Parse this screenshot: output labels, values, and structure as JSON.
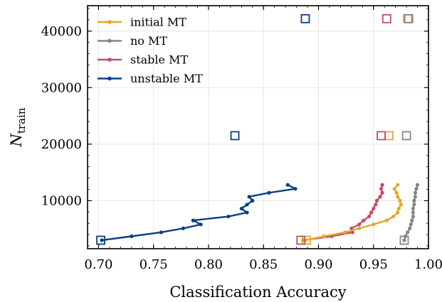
{
  "chart_data": {
    "type": "line",
    "xlabel": "Classification Accuracy",
    "ylabel": "N",
    "ylabel_sub": "train",
    "xlim": [
      0.69,
      1.0
    ],
    "ylim": [
      1500,
      44500
    ],
    "x_ticks": [
      0.7,
      0.75,
      0.8,
      0.85,
      0.9,
      0.95,
      1.0
    ],
    "x_tick_labels": [
      "0.70",
      "0.75",
      "0.80",
      "0.85",
      "0.90",
      "0.95",
      "1.00"
    ],
    "y_ticks": [
      10000,
      20000,
      30000,
      40000
    ],
    "y_tick_labels": [
      "10000",
      "20000",
      "30000",
      "40000"
    ],
    "grid": true,
    "legend_position": "top-left",
    "series": [
      {
        "name": "initial MT",
        "color": "#e5a82a",
        "points": [
          [
            0.888,
            3000
          ],
          [
            0.905,
            3700
          ],
          [
            0.924,
            4400
          ],
          [
            0.937,
            5100
          ],
          [
            0.95,
            5800
          ],
          [
            0.962,
            6500
          ],
          [
            0.968,
            7200
          ],
          [
            0.972,
            7900
          ],
          [
            0.973,
            8600
          ],
          [
            0.975,
            9300
          ],
          [
            0.974,
            10000
          ],
          [
            0.972,
            10700
          ],
          [
            0.971,
            11400
          ],
          [
            0.969,
            12100
          ],
          [
            0.972,
            12800
          ]
        ],
        "markers": [
          [
            0.889,
            3000
          ],
          [
            0.964,
            21500
          ],
          [
            0.981,
            42200
          ]
        ]
      },
      {
        "name": "no MT",
        "color": "#858585",
        "points": [
          [
            0.978,
            3000
          ],
          [
            0.979,
            3700
          ],
          [
            0.981,
            4400
          ],
          [
            0.983,
            5100
          ],
          [
            0.984,
            5800
          ],
          [
            0.985,
            6500
          ],
          [
            0.986,
            7200
          ],
          [
            0.986,
            7900
          ],
          [
            0.986,
            8600
          ],
          [
            0.987,
            9300
          ],
          [
            0.987,
            10000
          ],
          [
            0.988,
            10700
          ],
          [
            0.988,
            11400
          ],
          [
            0.989,
            12100
          ],
          [
            0.99,
            12800
          ]
        ],
        "markers": [
          [
            0.978,
            3000
          ],
          [
            0.98,
            21500
          ],
          [
            0.982,
            42200
          ]
        ]
      },
      {
        "name": "stable MT",
        "color": "#c0505f",
        "points": [
          [
            0.886,
            3000
          ],
          [
            0.912,
            3700
          ],
          [
            0.931,
            4400
          ],
          [
            0.93,
            5100
          ],
          [
            0.937,
            5800
          ],
          [
            0.941,
            6500
          ],
          [
            0.946,
            7200
          ],
          [
            0.948,
            7900
          ],
          [
            0.95,
            8600
          ],
          [
            0.952,
            9300
          ],
          [
            0.953,
            10000
          ],
          [
            0.956,
            10700
          ],
          [
            0.958,
            11400
          ],
          [
            0.957,
            12100
          ],
          [
            0.958,
            12800
          ]
        ],
        "markers": [
          [
            0.884,
            3000
          ],
          [
            0.957,
            21500
          ],
          [
            0.962,
            42200
          ]
        ]
      },
      {
        "name": "unstable MT",
        "color": "#0a3f82",
        "points": [
          [
            0.703,
            3000
          ],
          [
            0.73,
            3700
          ],
          [
            0.757,
            4400
          ],
          [
            0.777,
            5100
          ],
          [
            0.793,
            5800
          ],
          [
            0.786,
            6500
          ],
          [
            0.818,
            7200
          ],
          [
            0.835,
            7900
          ],
          [
            0.83,
            8600
          ],
          [
            0.835,
            9300
          ],
          [
            0.84,
            10000
          ],
          [
            0.837,
            10700
          ],
          [
            0.855,
            11400
          ],
          [
            0.879,
            12100
          ],
          [
            0.872,
            12800
          ]
        ],
        "markers": [
          [
            0.702,
            3000
          ],
          [
            0.824,
            21500
          ],
          [
            0.888,
            42200
          ]
        ]
      }
    ]
  }
}
